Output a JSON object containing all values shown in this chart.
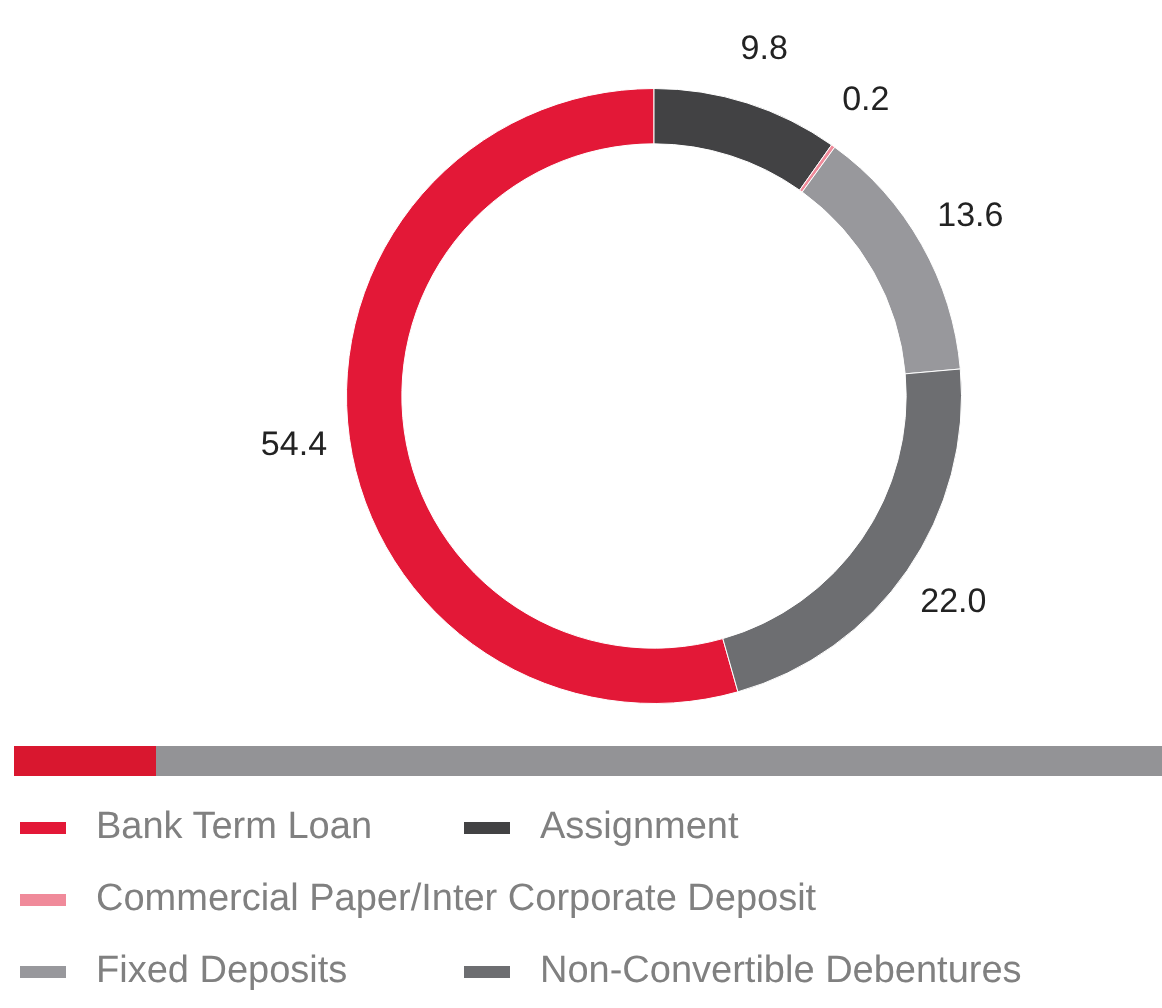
{
  "chart_data": {
    "type": "donut",
    "categories": [
      "Bank Term Loan",
      "Assignment",
      "Commercial Paper/Inter Corporate Deposit",
      "Fixed Deposits",
      "Non-Convertible Debentures"
    ],
    "values": [
      54.4,
      9.8,
      0.2,
      13.6,
      22.0
    ],
    "value_labels": [
      "54.4",
      "9.8",
      "0.2",
      "13.6",
      "22.0"
    ],
    "colors": [
      "#e31837",
      "#424244",
      "#f08a9a",
      "#98989c",
      "#6d6e71"
    ],
    "legend": "bottom"
  }
}
